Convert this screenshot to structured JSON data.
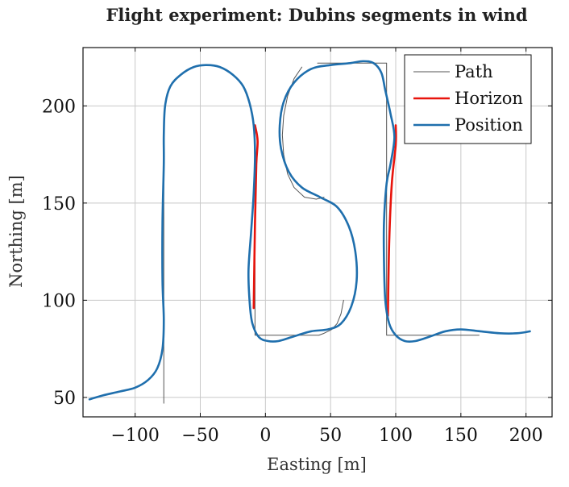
{
  "chart_data": {
    "type": "line",
    "title": "Flight experiment: Dubins segments in wind",
    "xlabel": "Easting [m]",
    "ylabel": "Northing [m]",
    "xlim": [
      -140,
      220
    ],
    "ylim": [
      40,
      230
    ],
    "xticks": [
      -100,
      -50,
      0,
      50,
      100,
      150,
      200
    ],
    "yticks": [
      50,
      100,
      150,
      200
    ],
    "xtick_labels": [
      "−100",
      "−50",
      "0",
      "50",
      "100",
      "150",
      "200"
    ],
    "ytick_labels": [
      "50",
      "100",
      "150",
      "200"
    ],
    "grid": true,
    "legend_position": "top-right",
    "series": [
      {
        "name": "Path",
        "color": "#555555",
        "width": 1.0,
        "segments": [
          [
            [
              -78,
              47
            ],
            [
              -78,
              189
            ]
          ],
          [
            [
              -8,
              188
            ],
            [
              -8,
              82
            ],
            [
              41,
              82
            ],
            [
              45,
              83
            ],
            [
              51,
              85
            ],
            [
              55,
              88
            ],
            [
              58,
              93
            ],
            [
              60,
              100
            ]
          ],
          [
            [
              28,
              220
            ],
            [
              22,
              214
            ],
            [
              17,
              205
            ],
            [
              14,
              195
            ],
            [
              13,
              185
            ],
            [
              14,
              175
            ],
            [
              17,
              165
            ],
            [
              22,
              158
            ],
            [
              30,
              153
            ],
            [
              39,
              152
            ],
            [
              45,
              153
            ]
          ],
          [
            [
              40,
              222
            ],
            [
              93,
              222
            ],
            [
              93,
              82
            ],
            [
              164,
              82
            ]
          ]
        ]
      },
      {
        "name": "Horizon",
        "color": "#e8140c",
        "width": 2.6,
        "segments": [
          [
            [
              -9,
              96
            ],
            [
              -8,
              140
            ],
            [
              -7,
              170
            ],
            [
              -6,
              182
            ],
            [
              -8,
              190
            ]
          ],
          [
            [
              94,
              92
            ],
            [
              95,
              130
            ],
            [
              97,
              160
            ],
            [
              100,
              180
            ],
            [
              100,
              190
            ]
          ]
        ]
      },
      {
        "name": "Position",
        "color": "#1f6fad",
        "width": 2.6,
        "segments": [
          [
            [
              -135,
              49
            ],
            [
              -125,
              51
            ],
            [
              -112,
              53
            ],
            [
              -100,
              55
            ],
            [
              -90,
              59
            ],
            [
              -83,
              65
            ],
            [
              -79,
              75
            ],
            [
              -78,
              90
            ],
            [
              -79,
              110
            ],
            [
              -79,
              140
            ],
            [
              -78,
              170
            ],
            [
              -78,
              185
            ],
            [
              -77,
              200
            ],
            [
              -73,
              210
            ],
            [
              -65,
              216
            ],
            [
              -55,
              220
            ],
            [
              -45,
              221
            ],
            [
              -35,
              220
            ],
            [
              -25,
              216
            ],
            [
              -17,
              210
            ],
            [
              -12,
              201
            ],
            [
              -9,
              190
            ],
            [
              -8,
              175
            ],
            [
              -9,
              155
            ],
            [
              -11,
              135
            ],
            [
              -13,
              115
            ],
            [
              -12,
              98
            ],
            [
              -10,
              88
            ],
            [
              -5,
              81
            ],
            [
              2,
              79
            ],
            [
              10,
              79
            ],
            [
              20,
              81
            ],
            [
              35,
              84
            ],
            [
              48,
              85
            ],
            [
              58,
              88
            ],
            [
              66,
              97
            ],
            [
              70,
              110
            ],
            [
              69,
              125
            ],
            [
              64,
              138
            ],
            [
              55,
              148
            ],
            [
              42,
              153
            ],
            [
              28,
              158
            ],
            [
              18,
              166
            ],
            [
              12,
              178
            ],
            [
              11,
              190
            ],
            [
              14,
              202
            ],
            [
              22,
              212
            ],
            [
              35,
              219
            ],
            [
              50,
              221
            ],
            [
              65,
              222
            ],
            [
              75,
              223
            ],
            [
              83,
              222
            ],
            [
              89,
              217
            ],
            [
              92,
              208
            ],
            [
              96,
              196
            ],
            [
              99,
              184
            ],
            [
              96,
              170
            ],
            [
              93,
              160
            ],
            [
              91,
              140
            ],
            [
              91,
              120
            ],
            [
              92,
              100
            ],
            [
              95,
              88
            ],
            [
              100,
              82
            ],
            [
              107,
              79
            ],
            [
              115,
              79
            ],
            [
              125,
              81
            ],
            [
              138,
              84
            ],
            [
              150,
              85
            ],
            [
              165,
              84
            ],
            [
              180,
              83
            ],
            [
              193,
              83
            ],
            [
              203,
              84
            ]
          ]
        ]
      }
    ]
  }
}
